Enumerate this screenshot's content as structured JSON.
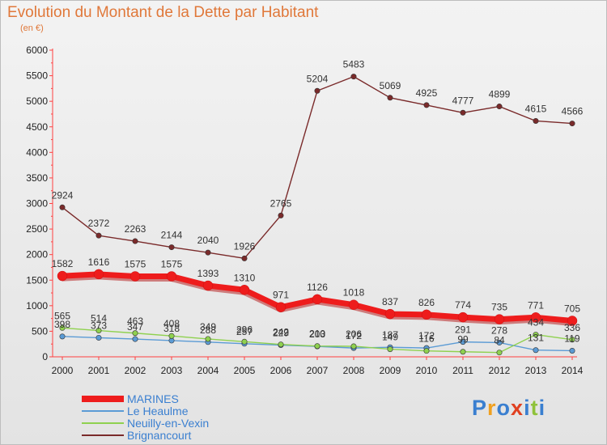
{
  "chart_data": {
    "type": "line",
    "title": "Evolution du Montant de la Dette par Habitant",
    "subtitle": "(en €)",
    "x": [
      "2000",
      "2001",
      "2002",
      "2003",
      "2004",
      "2005",
      "2006",
      "2007",
      "2008",
      "2009",
      "2010",
      "2011",
      "2012",
      "2013",
      "2014"
    ],
    "ylim": [
      0,
      6000
    ],
    "yticks": [
      0,
      500,
      1000,
      1500,
      2000,
      2500,
      3000,
      3500,
      4000,
      4500,
      5000,
      5500,
      6000
    ],
    "grid": false,
    "legend_position": "bottom-left",
    "series": [
      {
        "name": "MARINES",
        "color": "#ee1c1c",
        "values": [
          1582,
          1616,
          1575,
          1575,
          1393,
          1310,
          971,
          1126,
          1018,
          837,
          826,
          774,
          735,
          771,
          705
        ]
      },
      {
        "name": "Le Heaulme",
        "color": "#5b9bd5",
        "values": [
          398,
          373,
          347,
          318,
          288,
          257,
          229,
          203,
          172,
          187,
          172,
          291,
          278,
          131,
          119
        ]
      },
      {
        "name": "Neuilly-en-Vexin",
        "color": "#8fd14f",
        "values": [
          565,
          514,
          463,
          408,
          349,
          296,
          242,
          210,
          206,
          149,
          116,
          99,
          84,
          434,
          336
        ]
      },
      {
        "name": "Brignancourt",
        "color": "#7a2a2a",
        "values": [
          2924,
          2372,
          2263,
          2144,
          2040,
          1926,
          2765,
          5204,
          5483,
          5069,
          4925,
          4777,
          4899,
          4615,
          4566
        ]
      }
    ]
  },
  "logo": {
    "text": "Proxiti",
    "colors": [
      "#3a7fd0",
      "#f0a020",
      "#3a7fd0",
      "#e04020",
      "#3a7fd0",
      "#8fc23a",
      "#3a7fd0"
    ]
  }
}
